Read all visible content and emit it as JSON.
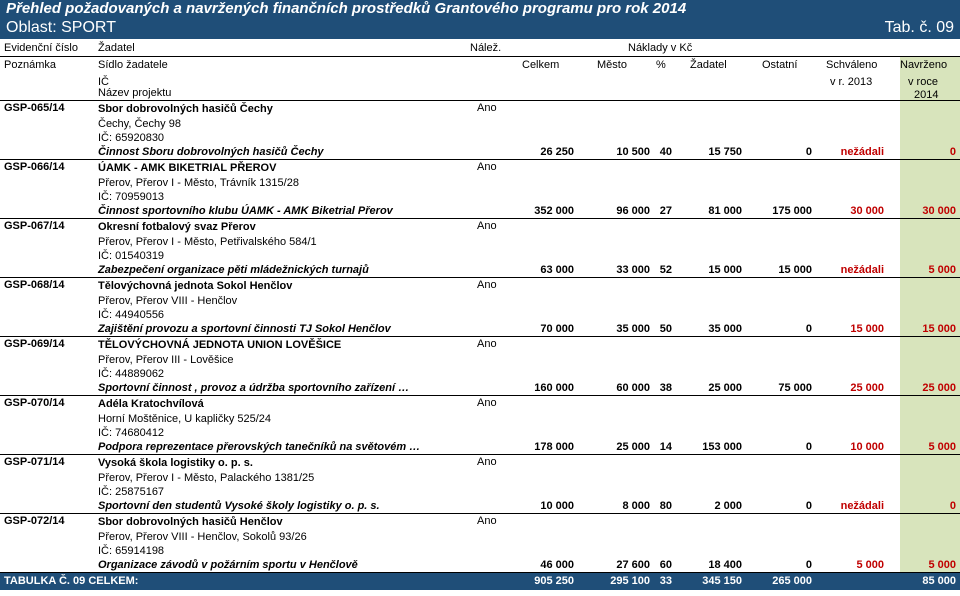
{
  "title": "Přehled požadovaných a navržených finančních prostředků Grantového programu pro rok 2014",
  "subtitle": "Oblast: SPORT",
  "tab_label": "Tab. č. 09",
  "header": {
    "evidencni": "Evidenční číslo",
    "zadatel": "Žadatel",
    "nalez": "Nálež.",
    "naklady": "Náklady v Kč",
    "poznamka": "Poznámka",
    "sidlo": "Sídlo žadatele",
    "celkem": "Celkem",
    "mesto": "Město",
    "pct": "%",
    "zadatel2": "Žadatel",
    "ostatni": "Ostatní",
    "schvaleno": "Schváleno",
    "navrzeno": "Navrženo",
    "ic": "IČ",
    "vr": "v r. 2013",
    "vroce": "v roce",
    "nazev": "Název projektu",
    "rok": "2014"
  },
  "records": [
    {
      "id": "GSP-065/14",
      "name": "Sbor dobrovolných hasičů Čechy",
      "address": "Čechy, Čechy 98",
      "ic": "IČ: 65920830",
      "project": "Činnost Sboru dobrovolných hasičů Čechy",
      "ano": "Ano",
      "celkem": "26 250",
      "mesto": "10 500",
      "pct": "40",
      "zadatel": "15 750",
      "ostatni": "0",
      "schvaleno": "nežádali",
      "navrzeno": "0"
    },
    {
      "id": "GSP-066/14",
      "name": "ÚAMK - AMK BIKETRIAL PŘEROV",
      "address": "Přerov, Přerov I - Město, Trávník 1315/28",
      "ic": "IČ: 70959013",
      "project": "Činnost sportovního klubu ÚAMK - AMK Biketrial Přerov",
      "ano": "Ano",
      "celkem": "352 000",
      "mesto": "96 000",
      "pct": "27",
      "zadatel": "81 000",
      "ostatni": "175 000",
      "schvaleno": "30 000",
      "navrzeno": "30 000"
    },
    {
      "id": "GSP-067/14",
      "name": "Okresní fotbalový svaz Přerov",
      "address": "Přerov, Přerov I - Město, Petřivalského 584/1",
      "ic": "IČ: 01540319",
      "project": "Zabezpečení organizace pěti mládežnických turnajů",
      "ano": "Ano",
      "celkem": "63 000",
      "mesto": "33 000",
      "pct": "52",
      "zadatel": "15 000",
      "ostatni": "15 000",
      "schvaleno": "nežádali",
      "navrzeno": "5 000"
    },
    {
      "id": "GSP-068/14",
      "name": "Tělovýchovná jednota Sokol Henčlov",
      "address": "Přerov, Přerov VIII - Henčlov",
      "ic": "IČ: 44940556",
      "project": "Zajištění provozu a sportovní činnosti TJ Sokol Henčlov",
      "ano": "Ano",
      "celkem": "70 000",
      "mesto": "35 000",
      "pct": "50",
      "zadatel": "35 000",
      "ostatni": "0",
      "schvaleno": "15 000",
      "navrzeno": "15 000"
    },
    {
      "id": "GSP-069/14",
      "name": "TĚLOVÝCHOVNÁ JEDNOTA UNION LOVĚŠICE",
      "address": "Přerov, Přerov III - Lověšice",
      "ic": "IČ: 44889062",
      "project": "Sportovní činnost , provoz a údržba sportovního zařízení …",
      "ano": "Ano",
      "celkem": "160 000",
      "mesto": "60 000",
      "pct": "38",
      "zadatel": "25 000",
      "ostatni": "75 000",
      "schvaleno": "25 000",
      "navrzeno": "25 000"
    },
    {
      "id": "GSP-070/14",
      "name": "Adéla Kratochvílová",
      "address": "Horní Moštěnice, U kapličky 525/24",
      "ic": "IČ: 74680412",
      "project": "Podpora reprezentace přerovských tanečníků na světovém …",
      "ano": "Ano",
      "celkem": "178 000",
      "mesto": "25 000",
      "pct": "14",
      "zadatel": "153 000",
      "ostatni": "0",
      "schvaleno": "10 000",
      "navrzeno": "5 000"
    },
    {
      "id": "GSP-071/14",
      "name": "Vysoká škola logistiky o. p. s.",
      "address": "Přerov, Přerov I - Město, Palackého 1381/25",
      "ic": "IČ: 25875167",
      "project": "Sportovní den studentů Vysoké školy logistiky o. p. s.",
      "ano": "Ano",
      "celkem": "10 000",
      "mesto": "8 000",
      "pct": "80",
      "zadatel": "2 000",
      "ostatni": "0",
      "schvaleno": "nežádali",
      "navrzeno": "0"
    },
    {
      "id": "GSP-072/14",
      "name": "Sbor dobrovolných hasičů Henčlov",
      "address": "Přerov, Přerov VIII - Henčlov, Sokolů 93/26",
      "ic": "IČ: 65914198",
      "project": "Organizace závodů v požárním sportu v Henčlově",
      "ano": "Ano",
      "celkem": "46 000",
      "mesto": "27 600",
      "pct": "60",
      "zadatel": "18 400",
      "ostatni": "0",
      "schvaleno": "5 000",
      "navrzeno": "5 000"
    }
  ],
  "total": {
    "label": "TABULKA Č. 09 CELKEM:",
    "celkem": "905 250",
    "mesto": "295 100",
    "pct": "33",
    "zadatel": "345 150",
    "ostatni": "265 000",
    "navrzeno": "85 000"
  },
  "colors": {
    "header_bg": "#1f4e78",
    "green_bg": "#d9ead3",
    "nav_bg": "#d8e4bc",
    "red": "#c00000"
  }
}
